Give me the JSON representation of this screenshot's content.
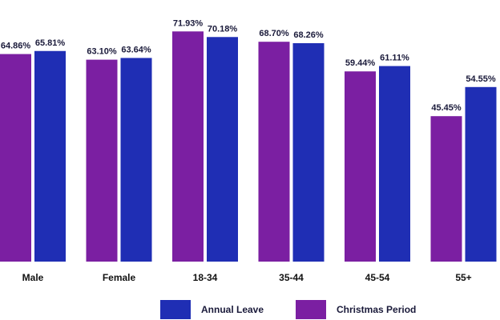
{
  "chart_data": {
    "type": "bar",
    "categories": [
      "Male",
      "Female",
      "18-34",
      "35-44",
      "45-54",
      "55+"
    ],
    "series": [
      {
        "name": "Christmas Period",
        "values": [
          64.86,
          63.1,
          71.93,
          68.7,
          59.44,
          45.45
        ],
        "labels": [
          "64.86%",
          "63.10%",
          "71.93%",
          "68.70%",
          "59.44%",
          "45.45%"
        ],
        "color": "#7b1fa2"
      },
      {
        "name": "Annual Leave",
        "values": [
          65.81,
          63.64,
          70.18,
          68.26,
          61.11,
          54.55
        ],
        "labels": [
          "65.81%",
          "63.64%",
          "70.18%",
          "68.26%",
          "61.11%",
          "54.55%"
        ],
        "color": "#1f2eb4"
      }
    ],
    "legend_order": [
      "Annual Leave",
      "Christmas Period"
    ],
    "legend_position": "bottom",
    "ylim": [
      0,
      100
    ],
    "grid": false,
    "xlabel": "",
    "ylabel": ""
  }
}
